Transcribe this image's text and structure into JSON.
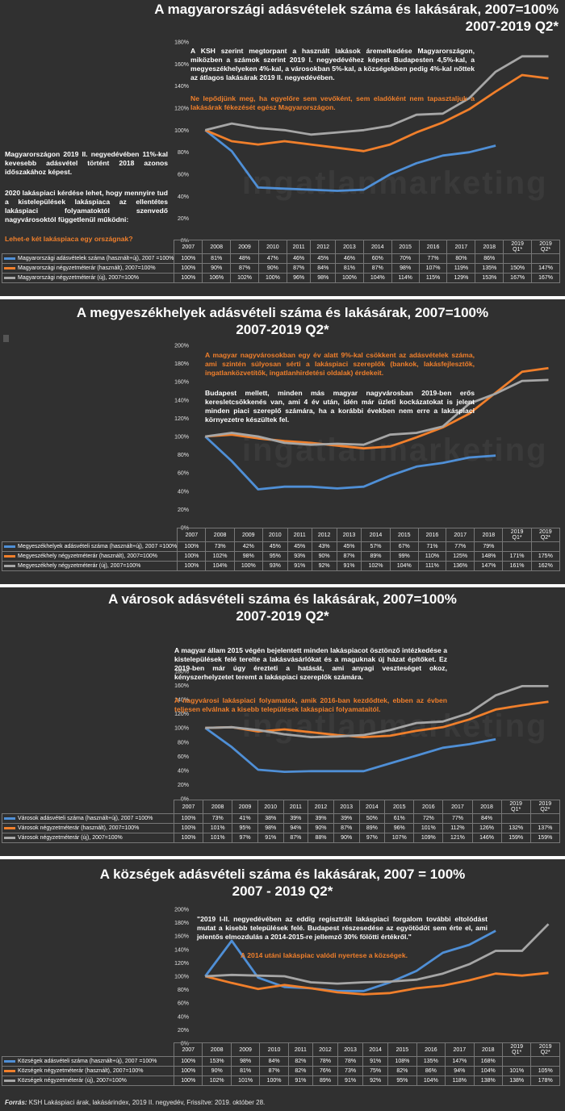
{
  "colors": {
    "sales": "#4f8fd6",
    "used": "#f07f2b",
    "new": "#a6a6a6",
    "text_orange": "#f07f2b"
  },
  "years": [
    "2007",
    "2008",
    "2009",
    "2010",
    "2011",
    "2012",
    "2013",
    "2014",
    "2015",
    "2016",
    "2017",
    "2018",
    "2019 Q1*",
    "2019 Q2*"
  ],
  "chart_data": [
    {
      "type": "line",
      "title": "A magyarországi adásvételek száma és lakásárak, 2007=100%",
      "subtitle": "2007-2019 Q2*",
      "yticks": [
        "0%",
        "20%",
        "40%",
        "60%",
        "80%",
        "100%",
        "120%",
        "140%",
        "160%",
        "180%"
      ],
      "ylim": [
        0,
        180
      ],
      "series": [
        {
          "name": "Magyarországi adásvételek száma (használt+új), 2007 =100%",
          "color": "#4f8fd6",
          "values": [
            100,
            81,
            48,
            47,
            46,
            45,
            46,
            60,
            70,
            77,
            80,
            86,
            null,
            null
          ],
          "labels": [
            "100%",
            "81%",
            "48%",
            "47%",
            "46%",
            "45%",
            "46%",
            "60%",
            "70%",
            "77%",
            "80%",
            "86%",
            "",
            ""
          ]
        },
        {
          "name": "Magyarországi négyzetméterár (használt), 2007=100%",
          "color": "#f07f2b",
          "values": [
            100,
            90,
            87,
            90,
            87,
            84,
            81,
            87,
            98,
            107,
            119,
            135,
            150,
            147
          ],
          "labels": [
            "100%",
            "90%",
            "87%",
            "90%",
            "87%",
            "84%",
            "81%",
            "87%",
            "98%",
            "107%",
            "119%",
            "135%",
            "150%",
            "147%"
          ]
        },
        {
          "name": "Magyarországi négyzetméterár (új), 2007=100%",
          "color": "#a6a6a6",
          "values": [
            100,
            106,
            102,
            100,
            96,
            98,
            100,
            104,
            114,
            115,
            129,
            153,
            167,
            167
          ],
          "labels": [
            "100%",
            "106%",
            "102%",
            "100%",
            "96%",
            "98%",
            "100%",
            "104%",
            "114%",
            "115%",
            "129%",
            "153%",
            "167%",
            "167%"
          ]
        }
      ]
    },
    {
      "type": "line",
      "title": "A megyeszékhelyek adásvételi száma és lakásárak, 2007=100%",
      "subtitle": "2007-2019 Q2*",
      "yticks": [
        "0%",
        "20%",
        "40%",
        "60%",
        "80%",
        "100%",
        "120%",
        "140%",
        "160%",
        "180%",
        "200%"
      ],
      "ylim": [
        0,
        200
      ],
      "series": [
        {
          "name": "Megyeszékhelyek adásvételi száma (használt+új), 2007 =100%",
          "color": "#4f8fd6",
          "values": [
            100,
            73,
            42,
            45,
            45,
            43,
            45,
            57,
            67,
            71,
            77,
            79,
            null,
            null
          ],
          "labels": [
            "100%",
            "73%",
            "42%",
            "45%",
            "45%",
            "43%",
            "45%",
            "57%",
            "67%",
            "71%",
            "77%",
            "79%",
            "",
            ""
          ]
        },
        {
          "name": "Megyeszékhely négyzetméterár (használt), 2007=100%",
          "color": "#f07f2b",
          "values": [
            100,
            102,
            98,
            95,
            93,
            90,
            87,
            89,
            99,
            110,
            125,
            148,
            171,
            175
          ],
          "labels": [
            "100%",
            "102%",
            "98%",
            "95%",
            "93%",
            "90%",
            "87%",
            "89%",
            "99%",
            "110%",
            "125%",
            "148%",
            "171%",
            "175%"
          ]
        },
        {
          "name": "Megyeszékhely négyzetméterár (új), 2007=100%",
          "color": "#a6a6a6",
          "values": [
            100,
            104,
            100,
            93,
            91,
            92,
            91,
            102,
            104,
            111,
            136,
            147,
            161,
            162
          ],
          "labels": [
            "100%",
            "104%",
            "100%",
            "93%",
            "91%",
            "92%",
            "91%",
            "102%",
            "104%",
            "111%",
            "136%",
            "147%",
            "161%",
            "162%"
          ]
        }
      ]
    },
    {
      "type": "line",
      "title": "A városok adásvételi száma és lakásárak, 2007=100%",
      "subtitle": "2007-2019 Q2*",
      "yticks": [
        "0%",
        "20%",
        "40%",
        "60%",
        "80%",
        "100%",
        "120%",
        "140%",
        "160%",
        "180%"
      ],
      "ylim": [
        0,
        180
      ],
      "series": [
        {
          "name": "Városok adásvételi száma (használt+új), 2007 =100%",
          "color": "#4f8fd6",
          "values": [
            100,
            73,
            41,
            38,
            39,
            39,
            39,
            50,
            61,
            72,
            77,
            84,
            null,
            null
          ],
          "labels": [
            "100%",
            "73%",
            "41%",
            "38%",
            "39%",
            "39%",
            "39%",
            "50%",
            "61%",
            "72%",
            "77%",
            "84%",
            "",
            ""
          ]
        },
        {
          "name": "Városok négyzetméterár (használt), 2007=100%",
          "color": "#f07f2b",
          "values": [
            100,
            101,
            95,
            98,
            94,
            90,
            87,
            89,
            96,
            101,
            112,
            126,
            132,
            137
          ],
          "labels": [
            "100%",
            "101%",
            "95%",
            "98%",
            "94%",
            "90%",
            "87%",
            "89%",
            "96%",
            "101%",
            "112%",
            "126%",
            "132%",
            "137%"
          ]
        },
        {
          "name": "Városok négyzetméterár (új), 2007=100%",
          "color": "#a6a6a6",
          "values": [
            100,
            101,
            97,
            91,
            87,
            88,
            90,
            97,
            107,
            109,
            121,
            146,
            159,
            159
          ],
          "labels": [
            "100%",
            "101%",
            "97%",
            "91%",
            "87%",
            "88%",
            "90%",
            "97%",
            "107%",
            "109%",
            "121%",
            "146%",
            "159%",
            "159%"
          ]
        }
      ]
    },
    {
      "type": "line",
      "title": "A községek adásvételi száma és lakásárak, 2007 = 100%",
      "subtitle": "2007 - 2019 Q2*",
      "yticks": [
        "0%",
        "20%",
        "40%",
        "60%",
        "80%",
        "100%",
        "120%",
        "140%",
        "160%",
        "180%",
        "200%"
      ],
      "ylim": [
        0,
        200
      ],
      "series": [
        {
          "name": "Községek adásvételi száma (használt+új), 2007 =100%",
          "color": "#4f8fd6",
          "values": [
            100,
            153,
            98,
            84,
            82,
            78,
            78,
            91,
            108,
            135,
            147,
            168,
            null,
            null
          ],
          "labels": [
            "100%",
            "153%",
            "98%",
            "84%",
            "82%",
            "78%",
            "78%",
            "91%",
            "108%",
            "135%",
            "147%",
            "168%",
            "",
            ""
          ]
        },
        {
          "name": "Községek négyzetméterár (használt), 2007=100%",
          "color": "#f07f2b",
          "values": [
            100,
            90,
            81,
            87,
            82,
            76,
            73,
            75,
            82,
            86,
            94,
            104,
            101,
            105
          ],
          "labels": [
            "100%",
            "90%",
            "81%",
            "87%",
            "82%",
            "76%",
            "73%",
            "75%",
            "82%",
            "86%",
            "94%",
            "104%",
            "101%",
            "105%"
          ]
        },
        {
          "name": "Községek négyzetméterár (új), 2007=100%",
          "color": "#a6a6a6",
          "values": [
            100,
            102,
            101,
            100,
            91,
            89,
            91,
            92,
            95,
            104,
            118,
            138,
            138,
            178
          ],
          "labels": [
            "100%",
            "102%",
            "101%",
            "100%",
            "91%",
            "89%",
            "91%",
            "92%",
            "95%",
            "104%",
            "118%",
            "138%",
            "138%",
            "178%"
          ]
        }
      ]
    }
  ],
  "text": {
    "p1_note1": "A KSH szerint megtorpant a használt lakások áremelkedése Magyarországon, miközben a számok szerint 2019 I. negyedévéhez képest Budapesten 4,5%-kal, a megyeszékhelyeken 4%-kal, a városokban 5%-kal, a községekben pedig 4%-kal nőttek az átlagos lakásárak 2019 II. negyedévében.",
    "p1_note2": "Ne lepődjünk meg, ha egyelőre sem vevőként, sem eladóként nem tapasztaljuk a lakásárak fékezését egész Magyarországon.",
    "p1_side1": "Magyarországon 2019 II. negyedévében 11%-kal kevesebb adásvétel történt 2018 azonos időszakához képest.",
    "p1_side2": "2020 lakáspiaci kérdése lehet, hogy mennyire tud a kistelepülések lakáspiaca az ellentétes lakáspiaci folyamatoktól szenvedő nagyvárosoktól függetlenül működni:",
    "p1_side3": "Lehet-e két lakáspiaca egy országnak?",
    "p2_note1": "A magyar nagyvárosokban egy év alatt 9%-kal csökkent az adásvételek száma, ami szintén súlyosan sérti a lakáspiaci szereplők (bankok, lakásfejlesztők, ingatlanközvetítők, ingatlanhirdetési oldalak) érdekeit.",
    "p2_note2": "Budapest mellett, minden más magyar nagyvárosban 2019-ben erős keresletcsökkenés van, ami 4 év után, idén már üzleti kockázatokat is jelent minden piaci szereplő számára, ha a korábbi években nem erre a lakáspiaci környezetre készültek fel.",
    "p3_note1": "A magyar állam 2015 végén bejelentett minden lakáspiacot ösztönző intézkedése a kistelepülések felé terelte a lakásvásárlókat és a maguknak új házat építőket. Ez 2019-ben már úgy érezteti a hatását, ami anyagi veszteséget okoz, kényszerhelyzetet teremt a lakáspiaci szereplők számára.",
    "p3_note2": "A nagyvárosi lakáspiaci folyamatok, amik 2016-ban kezdődtek, ebben az évben teljesen elválnak a kisebb települések lakáspiaci folyamataitól.",
    "p4_note1": "\"2019 I-II. negyedévében az eddig regisztrált lakáspiaci forgalom további eltolódást mutat a kisebb települések felé. Budapest részesedése az egyötödöt sem érte el, ami jelentős elmozdulás a 2014-2015-re jellemző 30% fölötti értékről.\"",
    "p4_note2": "A 2014 utáni lakáspiac valódi nyertese a községek.",
    "source_label": "Forrás:",
    "source_text": " KSH Lakáspiaci árak, lakásárindex, 2019 II. negyedév, Frissítve: 2019. október 28."
  }
}
